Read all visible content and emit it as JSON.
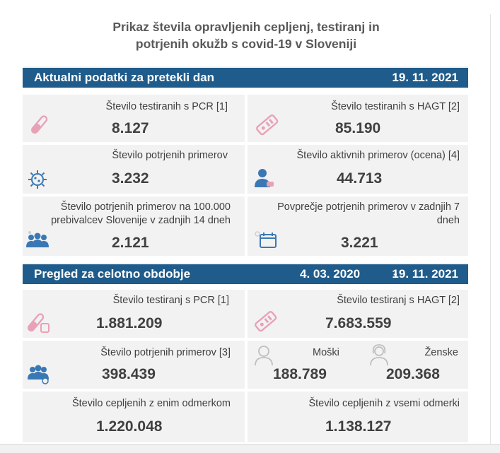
{
  "title_line1": "Prikaz števila opravljenih cepljenj, testiranj in",
  "title_line2": "potrjenih okužb s covid-19 v Sloveniji",
  "section1": {
    "label": "Aktualni podatki za pretekli dan",
    "date": "19. 11. 2021",
    "pcr": {
      "label": "Število testiranih s PCR [1]",
      "value": "8.127",
      "icon": "test-tube-icon"
    },
    "hagt": {
      "label": "Število testiranih s HAGT [2]",
      "value": "85.190",
      "icon": "rapid-test-icon"
    },
    "confirmed": {
      "label": "Število potrjenih primerov",
      "value": "3.232",
      "icon": "virus-icon"
    },
    "active": {
      "label": "Število aktivnih primerov (ocena) [4]",
      "value": "44.713",
      "icon": "person-icon"
    },
    "per100k": {
      "label_line1": "Število potrjenih primerov na 100.000",
      "label_line2": "prebivalcev Slovenije v zadnjih 14 dneh",
      "value": "2.121",
      "icon": "people-group-icon"
    },
    "avg7": {
      "label_line1": "Povprečje potrjenih primerov v zadnjih 7",
      "label_line2": "dneh",
      "value": "3.221",
      "icon": "calendar-icon"
    }
  },
  "section2": {
    "label": "Pregled za celotno obdobje",
    "date_from": "4. 03. 2020",
    "date_sep": "-",
    "date_to": "19. 11. 2021",
    "pcr": {
      "label": "Število testiranj s PCR [1]",
      "value": "1.881.209",
      "icon": "test-tube-icon"
    },
    "hagt": {
      "label": "Število testiranj s HAGT [2]",
      "value": "7.683.559",
      "icon": "rapid-test-icon"
    },
    "confirmed": {
      "label": "Število potrjenih primerov [3]",
      "value": "398.439",
      "icon": "people-group-icon"
    },
    "male": {
      "label": "Moški",
      "value": "188.789",
      "icon": "male-icon"
    },
    "female": {
      "label": "Ženske",
      "value": "209.368",
      "icon": "female-icon"
    },
    "vacc1": {
      "label": "Število cepljenih z enim odmerkom",
      "value": "1.220.048"
    },
    "vacc_all": {
      "label": "Število cepljenih z vsemi odmerki",
      "value": "1.138.127"
    }
  },
  "colors": {
    "band": "#1f5c8b",
    "card": "#f2f2f2",
    "icon_pink": "#e8a2b6",
    "icon_blue": "#3a78b5"
  }
}
